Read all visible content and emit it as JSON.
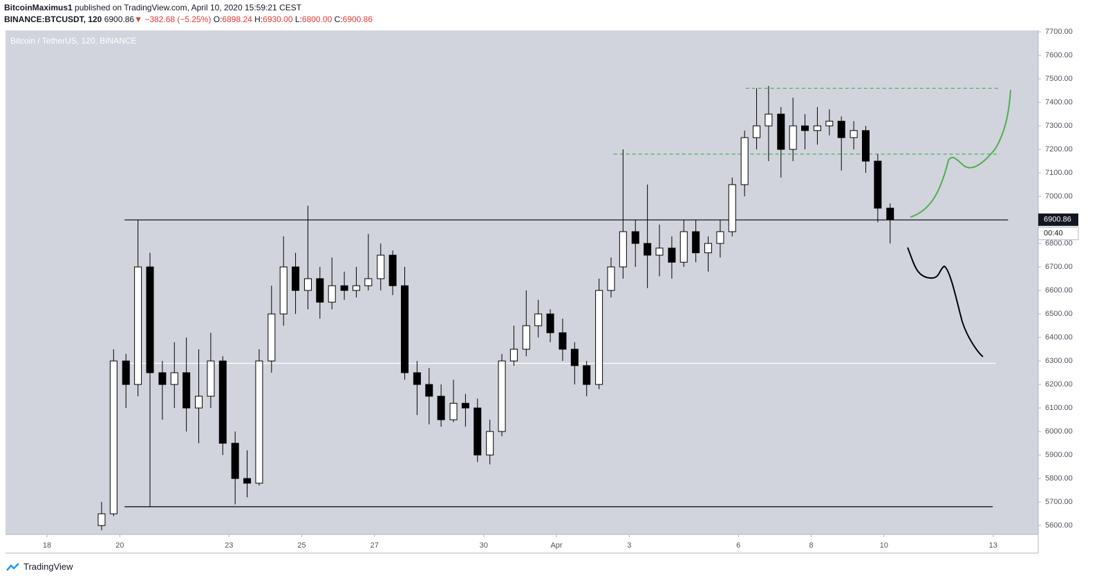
{
  "header": {
    "author": "BitcoinMaximus1",
    "published": "published on TradingView.com, April 10, 2020 15:59:21 CEST",
    "symbol": "BINANCE:BTCUSDT, 120",
    "last": "6900.86",
    "arrow": "▼",
    "change": "−382.68 (−5.25%)",
    "o_label": "O:",
    "o": "6898.24",
    "h_label": "H:",
    "h": "6930.00",
    "l_label": "L:",
    "l": "6800.00",
    "c_label": "C:",
    "c": "6900.86"
  },
  "footer": {
    "brand": "TradingView"
  },
  "chart_data": {
    "type": "candlestick",
    "title": "Bitcoin / TetherUS, 120, BINANCE",
    "up_color": "#ffffff",
    "down_color": "#000000",
    "outline": "#000000",
    "background": "#d1d4dc",
    "x": [
      19.5,
      19.83,
      20.17,
      20.5,
      20.83,
      21.17,
      21.5,
      21.83,
      22.17,
      22.5,
      22.83,
      23.17,
      23.5,
      23.83,
      24.17,
      24.5,
      24.83,
      25.17,
      25.5,
      25.83,
      26.17,
      26.5,
      26.83,
      27.17,
      27.5,
      27.83,
      28.17,
      28.5,
      28.83,
      29.17,
      29.5,
      29.83,
      30.17,
      30.5,
      30.83,
      31.17,
      31.5,
      31.83,
      32.17,
      32.5,
      32.83,
      33.17,
      33.5,
      33.83,
      34.17,
      34.5,
      34.83,
      35.17,
      35.5,
      35.83,
      36.17,
      36.5,
      36.83,
      37.17,
      37.5,
      37.83,
      38.17,
      38.5,
      38.83,
      39.17,
      39.5,
      39.83,
      40.17,
      40.5,
      40.83,
      41.17
    ],
    "ohlc": [
      [
        5600,
        5700,
        5580,
        5650
      ],
      [
        5650,
        6350,
        5640,
        6300
      ],
      [
        6300,
        6330,
        6100,
        6200
      ],
      [
        6200,
        6900,
        6150,
        6700
      ],
      [
        6700,
        6760,
        5680,
        6250
      ],
      [
        6250,
        6300,
        6050,
        6200
      ],
      [
        6200,
        6380,
        6100,
        6250
      ],
      [
        6250,
        6400,
        6000,
        6100
      ],
      [
        6100,
        6350,
        5950,
        6150
      ],
      [
        6150,
        6420,
        6100,
        6300
      ],
      [
        6300,
        6320,
        5900,
        5950
      ],
      [
        5950,
        6000,
        5690,
        5800
      ],
      [
        5800,
        5920,
        5720,
        5780
      ],
      [
        5780,
        6350,
        5770,
        6300
      ],
      [
        6300,
        6620,
        6250,
        6500
      ],
      [
        6500,
        6830,
        6450,
        6700
      ],
      [
        6700,
        6760,
        6500,
        6600
      ],
      [
        6600,
        6960,
        6520,
        6650
      ],
      [
        6650,
        6700,
        6480,
        6550
      ],
      [
        6550,
        6740,
        6520,
        6620
      ],
      [
        6620,
        6680,
        6560,
        6600
      ],
      [
        6600,
        6700,
        6570,
        6620
      ],
      [
        6620,
        6840,
        6600,
        6650
      ],
      [
        6650,
        6800,
        6600,
        6750
      ],
      [
        6750,
        6770,
        6580,
        6620
      ],
      [
        6620,
        6700,
        6220,
        6250
      ],
      [
        6250,
        6300,
        6070,
        6200
      ],
      [
        6200,
        6270,
        6030,
        6150
      ],
      [
        6150,
        6200,
        6020,
        6050
      ],
      [
        6050,
        6220,
        6040,
        6120
      ],
      [
        6120,
        6160,
        6020,
        6100
      ],
      [
        6100,
        6140,
        5870,
        5900
      ],
      [
        5900,
        6050,
        5860,
        6000
      ],
      [
        6000,
        6330,
        5980,
        6300
      ],
      [
        6300,
        6450,
        6280,
        6350
      ],
      [
        6350,
        6600,
        6320,
        6450
      ],
      [
        6450,
        6560,
        6400,
        6500
      ],
      [
        6500,
        6520,
        6380,
        6420
      ],
      [
        6420,
        6480,
        6300,
        6350
      ],
      [
        6350,
        6380,
        6200,
        6280
      ],
      [
        6280,
        6300,
        6150,
        6200
      ],
      [
        6200,
        6650,
        6180,
        6600
      ],
      [
        6600,
        6740,
        6570,
        6700
      ],
      [
        6700,
        7200,
        6650,
        6850
      ],
      [
        6850,
        6900,
        6700,
        6800
      ],
      [
        6800,
        7050,
        6610,
        6750
      ],
      [
        6750,
        6880,
        6660,
        6780
      ],
      [
        6780,
        6830,
        6650,
        6720
      ],
      [
        6720,
        6900,
        6700,
        6850
      ],
      [
        6850,
        6900,
        6720,
        6760
      ],
      [
        6760,
        6830,
        6680,
        6800
      ],
      [
        6800,
        6900,
        6740,
        6850
      ],
      [
        6850,
        7080,
        6830,
        7050
      ],
      [
        7050,
        7280,
        7000,
        7250
      ],
      [
        7250,
        7460,
        7200,
        7300
      ],
      [
        7300,
        7470,
        7150,
        7350
      ],
      [
        7350,
        7380,
        7080,
        7200
      ],
      [
        7200,
        7420,
        7150,
        7300
      ],
      [
        7300,
        7350,
        7200,
        7280
      ],
      [
        7280,
        7380,
        7220,
        7300
      ],
      [
        7300,
        7370,
        7260,
        7320
      ],
      [
        7320,
        7340,
        7110,
        7250
      ],
      [
        7250,
        7320,
        7200,
        7280
      ],
      [
        7280,
        7300,
        7100,
        7150
      ],
      [
        7150,
        7180,
        6890,
        6950
      ],
      [
        6950,
        6970,
        6800,
        6900.86
      ]
    ],
    "xlim": [
      16.86,
      45.24
    ],
    "xticks": [
      18,
      20,
      23,
      25,
      27,
      30,
      {
        "value": 32,
        "label": "Apr"
      },
      {
        "value": 34,
        "label": "3"
      },
      {
        "value": 37,
        "label": "6"
      },
      {
        "value": 39,
        "label": "8"
      },
      {
        "value": 41,
        "label": "10"
      },
      {
        "value": 44,
        "label": "13"
      }
    ],
    "ylim": [
      5562,
      7706
    ],
    "yticks": [
      {
        "value": 5600,
        "label": "5600.00"
      },
      {
        "value": 5700,
        "label": "5700.00"
      },
      {
        "value": 5800,
        "label": "5800.00"
      },
      {
        "value": 5900,
        "label": "5900.00"
      },
      {
        "value": 6000,
        "label": "6000.00"
      },
      {
        "value": 6100,
        "label": "6100.00"
      },
      {
        "value": 6200,
        "label": "6200.00"
      },
      {
        "value": 6300,
        "label": "6300.00"
      },
      {
        "value": 6400,
        "label": "6400.00"
      },
      {
        "value": 6500,
        "label": "6500.00"
      },
      {
        "value": 6600,
        "label": "6600.00"
      },
      {
        "value": 6700,
        "label": "6700.00"
      },
      {
        "value": 6800,
        "label": "6800.00"
      },
      {
        "value": 7000,
        "label": "7000.00"
      },
      {
        "value": 7100,
        "label": "7100.00"
      },
      {
        "value": 7200,
        "label": "7200.00"
      },
      {
        "value": 7300,
        "label": "7300.00"
      },
      {
        "value": 7400,
        "label": "7400.00"
      },
      {
        "value": 7500,
        "label": "7500.00"
      },
      {
        "value": 7600,
        "label": "7600.00"
      },
      {
        "value": 7700,
        "label": "7700.00"
      }
    ],
    "price_label": {
      "value": 6900.86,
      "label": "6900.86"
    },
    "timer": "00:40",
    "levels": [
      {
        "value": 6900,
        "color": "#000000",
        "dashed": false,
        "x": [
          20.13,
          44.41
        ]
      },
      {
        "value": 5680,
        "color": "#000000",
        "dashed": false,
        "x": [
          20.13,
          43.99
        ]
      },
      {
        "value": 6290,
        "color": "#ffffff",
        "dashed": false,
        "x": [
          20.13,
          44.08
        ]
      },
      {
        "value": 7460,
        "color": "#4caf50",
        "dashed": true,
        "x": [
          37.2,
          44.18
        ]
      },
      {
        "value": 7180,
        "color": "#4caf50",
        "dashed": true,
        "x": [
          33.57,
          44.18
        ]
      }
    ]
  }
}
